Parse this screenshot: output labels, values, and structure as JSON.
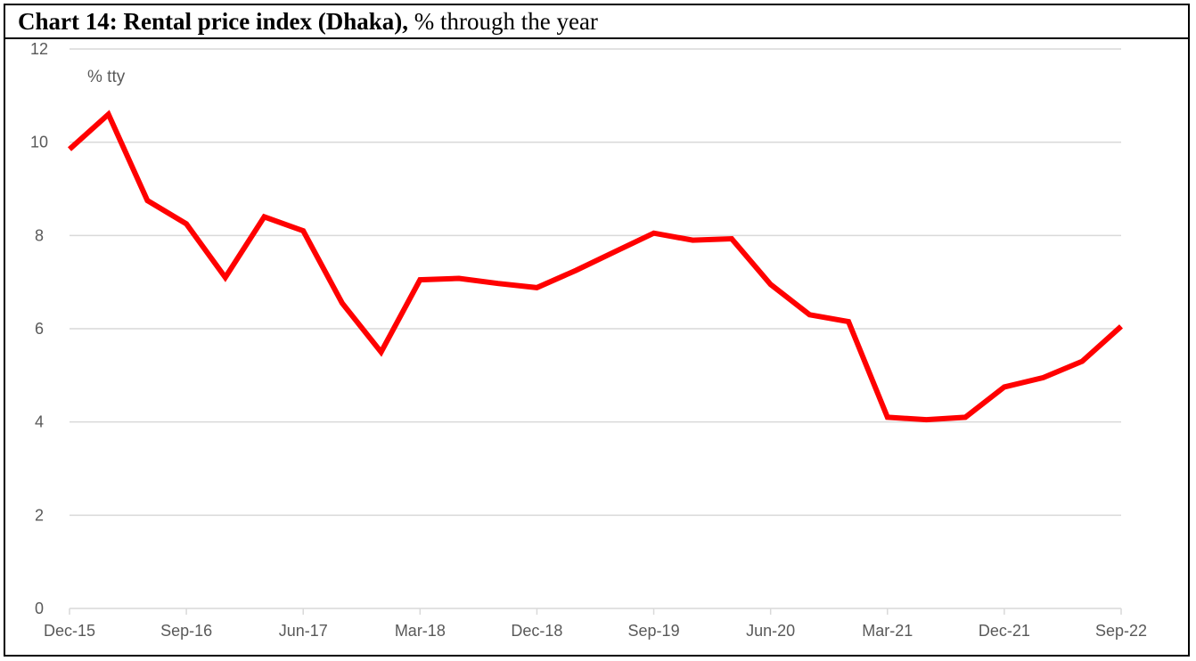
{
  "chart_data": {
    "type": "line",
    "title_bold": "Chart 14: Rental price index (Dhaka),",
    "title_rest": " % through the year",
    "unit_label": "% tty",
    "ylim": [
      0,
      12
    ],
    "y_ticks": [
      0,
      2,
      4,
      6,
      8,
      10,
      12
    ],
    "x_tick_labels": [
      "Dec-15",
      "Sep-16",
      "Jun-17",
      "Mar-18",
      "Dec-18",
      "Sep-19",
      "Jun-20",
      "Mar-21",
      "Dec-21",
      "Sep-22"
    ],
    "grid": true,
    "line_color": "#ff0000",
    "x": [
      "Dec-15",
      "Mar-16",
      "Jun-16",
      "Sep-16",
      "Dec-16",
      "Mar-17",
      "Jun-17",
      "Sep-17",
      "Dec-17",
      "Mar-18",
      "Jun-18",
      "Sep-18",
      "Dec-18",
      "Mar-19",
      "Jun-19",
      "Sep-19",
      "Dec-19",
      "Mar-20",
      "Jun-20",
      "Sep-20",
      "Dec-20",
      "Mar-21",
      "Jun-21",
      "Sep-21",
      "Dec-21",
      "Mar-22",
      "Jun-22",
      "Sep-22"
    ],
    "series": [
      {
        "values": [
          9.85,
          10.6,
          8.75,
          8.25,
          7.1,
          8.4,
          8.1,
          6.55,
          5.5,
          7.05,
          7.08,
          6.97,
          6.88,
          7.25,
          7.65,
          8.05,
          7.9,
          7.93,
          6.95,
          6.3,
          6.15,
          4.1,
          4.05,
          4.1,
          4.75,
          4.95,
          5.3,
          6.05
        ]
      }
    ]
  }
}
